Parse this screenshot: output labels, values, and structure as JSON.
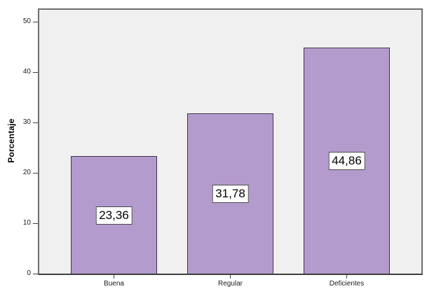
{
  "chart_data": {
    "type": "bar",
    "title": "",
    "xlabel": "",
    "ylabel": "Porcentaje",
    "categories": [
      "Buena",
      "Regular",
      "Deficientes"
    ],
    "values": [
      23.36,
      31.78,
      44.86
    ],
    "value_labels": [
      "23,36",
      "31,78",
      "44,86"
    ],
    "yticks": [
      0,
      10,
      20,
      30,
      40,
      50
    ],
    "ylim": [
      0,
      52.5
    ],
    "grid": false,
    "legend": false,
    "decimal_separator": ",",
    "colors": {
      "bar_fill": "#b49bcd",
      "bar_border": "#3d3548",
      "plot_background": "#f0f0f0",
      "frame_border": "#6e6e6e",
      "axis_line": "#3f3f3f",
      "label_box_background": "#ffffff",
      "label_box_border": "#4a4a4a",
      "text": "#1a1a1a"
    }
  }
}
